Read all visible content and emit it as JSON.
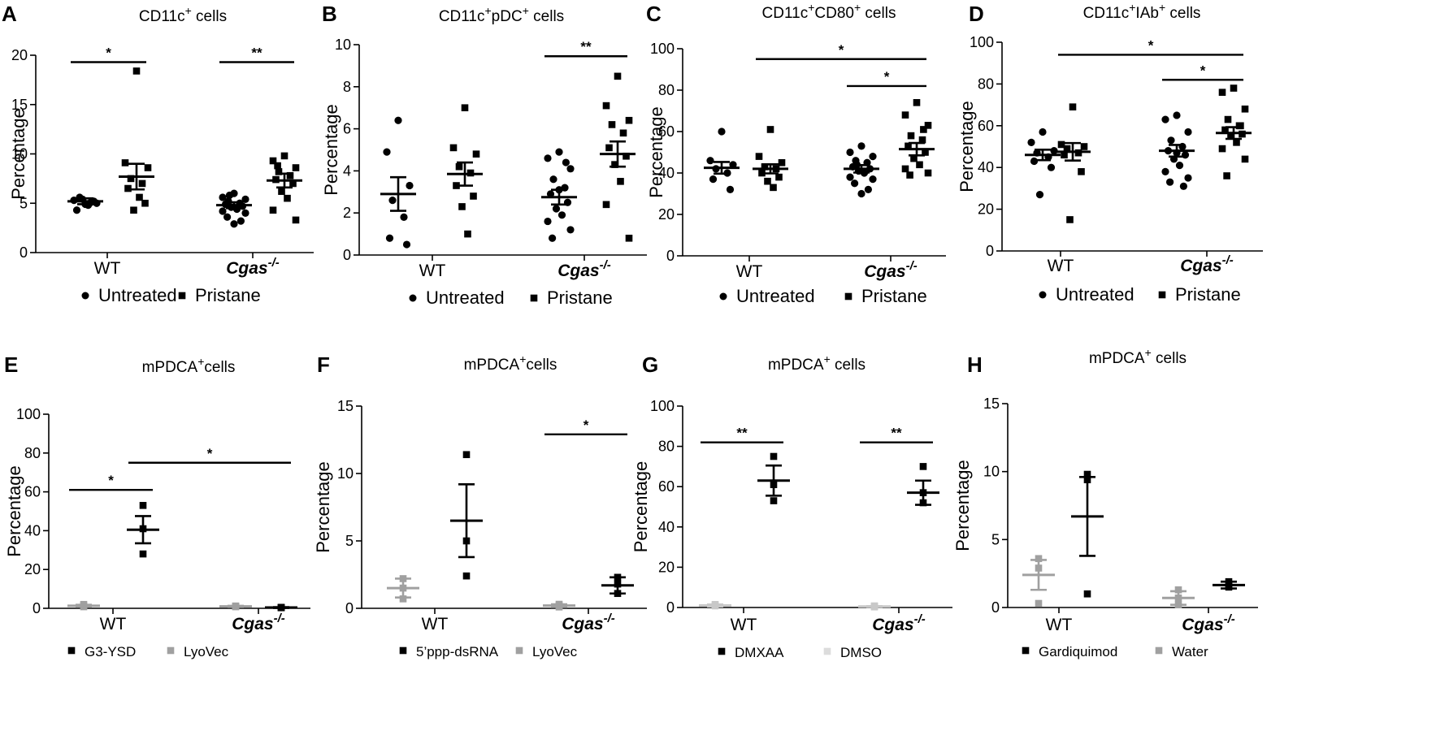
{
  "chart_data": [
    {
      "panel": "A",
      "type": "scatter",
      "title": "CD11c",
      "title_sup": "+",
      "title_rest": " cells",
      "ylabel": "Percentage",
      "ylim": [
        0,
        20
      ],
      "yticks": [
        0,
        5,
        10,
        15,
        20
      ],
      "groups": [
        {
          "text": "WT",
          "italic": false
        },
        {
          "text": "Cgas",
          "sup": "-/-",
          "italic": true
        }
      ],
      "legend": [
        {
          "marker": "circle",
          "label": "Untreated",
          "color": "#000000"
        },
        {
          "marker": "square",
          "label": "Pristane",
          "color": "#000000"
        }
      ],
      "series": [
        {
          "group": 0,
          "slot": 0,
          "marker": "circle",
          "color": "#000000",
          "mean": 5.2,
          "sem": 0.3,
          "values": [
            4.9,
            5.3,
            5.0,
            5.6,
            5.1,
            4.3,
            5.2,
            5.4,
            4.8
          ]
        },
        {
          "group": 0,
          "slot": 1,
          "marker": "square",
          "color": "#000000",
          "mean": 7.7,
          "sem": 1.3,
          "values": [
            18.4,
            9.1,
            8.6,
            7.5,
            7.0,
            6.5,
            5.0,
            4.3,
            5.6
          ]
        },
        {
          "group": 1,
          "slot": 0,
          "marker": "circle",
          "color": "#000000",
          "mean": 4.8,
          "sem": 0.3,
          "values": [
            6.0,
            5.6,
            5.4,
            5.2,
            5.0,
            4.9,
            4.7,
            4.6,
            4.4,
            4.2,
            4.0,
            3.6,
            3.2,
            2.9,
            5.8
          ]
        },
        {
          "group": 1,
          "slot": 1,
          "marker": "square",
          "color": "#000000",
          "mean": 7.3,
          "sem": 0.7,
          "values": [
            9.8,
            9.3,
            8.6,
            8.2,
            7.8,
            7.4,
            7.0,
            6.2,
            5.5,
            4.3,
            3.3,
            8.8
          ]
        }
      ],
      "annotations": [
        {
          "from": [
            0,
            0
          ],
          "to": [
            0,
            1
          ],
          "y": 19.3,
          "text": "*"
        },
        {
          "from": [
            1,
            0
          ],
          "to": [
            1,
            1
          ],
          "y": 19.3,
          "text": "**"
        }
      ]
    },
    {
      "panel": "B",
      "type": "scatter",
      "title": "CD11c",
      "title_sup": "+",
      "title_rest": "pDC",
      "title_sup2": "+",
      "title_rest2": " cells",
      "ylabel": "Percentage",
      "ylim": [
        0,
        10
      ],
      "yticks": [
        0,
        2,
        4,
        6,
        8,
        10
      ],
      "groups": [
        {
          "text": "WT",
          "italic": false
        },
        {
          "text": "Cgas",
          "sup": "-/-",
          "italic": true
        }
      ],
      "legend": [
        {
          "marker": "circle",
          "label": "Untreated",
          "color": "#000000"
        },
        {
          "marker": "square",
          "label": "Pristane",
          "color": "#000000"
        }
      ],
      "series": [
        {
          "group": 0,
          "slot": 0,
          "marker": "circle",
          "color": "#000000",
          "mean": 2.9,
          "sem": 0.8,
          "values": [
            6.4,
            4.9,
            3.3,
            2.6,
            1.8,
            0.8,
            0.5
          ]
        },
        {
          "group": 0,
          "slot": 1,
          "marker": "square",
          "color": "#000000",
          "mean": 3.85,
          "sem": 0.55,
          "values": [
            7.0,
            5.1,
            4.8,
            4.2,
            3.9,
            3.3,
            2.8,
            2.3,
            1.0
          ]
        },
        {
          "group": 1,
          "slot": 0,
          "marker": "circle",
          "color": "#000000",
          "mean": 2.75,
          "sem": 0.35,
          "values": [
            4.9,
            4.6,
            4.1,
            3.6,
            3.2,
            2.9,
            2.5,
            2.2,
            1.9,
            1.6,
            1.2,
            0.8,
            4.4,
            3.1
          ]
        },
        {
          "group": 1,
          "slot": 1,
          "marker": "square",
          "color": "#000000",
          "mean": 4.8,
          "sem": 0.6,
          "values": [
            8.5,
            7.1,
            6.4,
            6.2,
            5.8,
            5.1,
            4.7,
            4.3,
            3.5,
            2.4,
            0.8
          ]
        }
      ],
      "annotations": [
        {
          "from": [
            1,
            0
          ],
          "to": [
            1,
            1
          ],
          "y": 9.45,
          "text": "**"
        }
      ]
    },
    {
      "panel": "C",
      "type": "scatter",
      "title": "CD11c",
      "title_sup": "+",
      "title_rest": "CD80",
      "title_sup2": "+",
      "title_rest2": " cells",
      "ylabel": "Percentage",
      "ylim": [
        0,
        100
      ],
      "yticks": [
        0,
        20,
        40,
        60,
        80,
        100
      ],
      "groups": [
        {
          "text": "WT",
          "italic": false
        },
        {
          "text": "Cgas",
          "sup": "-/-",
          "italic": true
        }
      ],
      "legend": [
        {
          "marker": "circle",
          "label": "Untreated",
          "color": "#000000"
        },
        {
          "marker": "square",
          "label": "Pristane",
          "color": "#000000"
        }
      ],
      "series": [
        {
          "group": 0,
          "slot": 0,
          "marker": "circle",
          "color": "#000000",
          "mean": 42.5,
          "sem": 2.8,
          "values": [
            60,
            46,
            44,
            42,
            40,
            37,
            32
          ]
        },
        {
          "group": 0,
          "slot": 1,
          "marker": "square",
          "color": "#000000",
          "mean": 42.0,
          "sem": 2.2,
          "values": [
            61,
            48,
            45,
            43,
            42,
            40,
            38,
            36,
            33
          ]
        },
        {
          "group": 1,
          "slot": 0,
          "marker": "circle",
          "color": "#000000",
          "mean": 42.0,
          "sem": 1.8,
          "values": [
            53,
            50,
            48,
            46,
            45,
            43,
            42,
            41,
            40,
            38,
            37,
            35,
            32,
            30,
            44
          ]
        },
        {
          "group": 1,
          "slot": 1,
          "marker": "square",
          "color": "#000000",
          "mean": 51.5,
          "sem": 3.0,
          "values": [
            74,
            68,
            63,
            58,
            56,
            53,
            50,
            47,
            44,
            42,
            40,
            39,
            61
          ]
        }
      ],
      "annotations": [
        {
          "from": [
            0,
            1
          ],
          "to": [
            1,
            1
          ],
          "y": 95,
          "text": "*"
        },
        {
          "from": [
            1,
            0
          ],
          "to": [
            1,
            1
          ],
          "y": 82,
          "text": "*"
        }
      ]
    },
    {
      "panel": "D",
      "type": "scatter",
      "title": "CD11c",
      "title_sup": "+",
      "title_rest": "IAb",
      "title_sup2": "+",
      "title_rest2": " cells",
      "ylabel": "Percentage",
      "ylim": [
        0,
        100
      ],
      "yticks": [
        0,
        20,
        40,
        60,
        80,
        100
      ],
      "groups": [
        {
          "text": "WT",
          "italic": false
        },
        {
          "text": "Cgas",
          "sup": "-/-",
          "italic": true
        }
      ],
      "legend": [
        {
          "marker": "circle",
          "label": "Untreated",
          "color": "#000000"
        },
        {
          "marker": "square",
          "label": "Pristane",
          "color": "#000000"
        }
      ],
      "series": [
        {
          "group": 0,
          "slot": 0,
          "marker": "circle",
          "color": "#000000",
          "mean": 46.0,
          "sem": 2.5,
          "values": [
            57,
            52,
            48,
            47,
            45,
            43,
            40,
            27
          ]
        },
        {
          "group": 0,
          "slot": 1,
          "marker": "square",
          "color": "#000000",
          "mean": 47.5,
          "sem": 4.2,
          "values": [
            69,
            51,
            50,
            49,
            47,
            46,
            38,
            15
          ]
        },
        {
          "group": 1,
          "slot": 0,
          "marker": "circle",
          "color": "#000000",
          "mean": 48.0,
          "sem": 2.8,
          "values": [
            65,
            63,
            57,
            53,
            50,
            48,
            46,
            44,
            41,
            38,
            35,
            33,
            31,
            47
          ]
        },
        {
          "group": 1,
          "slot": 1,
          "marker": "square",
          "color": "#000000",
          "mean": 56.5,
          "sem": 2.8,
          "values": [
            78,
            76,
            68,
            63,
            60,
            58,
            56,
            55,
            52,
            49,
            44,
            36,
            60
          ]
        }
      ],
      "annotations": [
        {
          "from": [
            0,
            1
          ],
          "to": [
            1,
            1
          ],
          "y": 94,
          "text": "*"
        },
        {
          "from": [
            1,
            0
          ],
          "to": [
            1,
            1
          ],
          "y": 82,
          "text": "*"
        }
      ]
    },
    {
      "panel": "E",
      "type": "scatter",
      "title": "mPDCA",
      "title_sup": "+",
      "title_rest": "cells",
      "ylabel": "Percentage",
      "ylim": [
        0,
        100
      ],
      "yticks": [
        0,
        20,
        40,
        60,
        80,
        100
      ],
      "groups": [
        {
          "text": "WT",
          "italic": false
        },
        {
          "text": "Cgas",
          "sup": "-/-",
          "italic": true
        }
      ],
      "legend": [
        {
          "marker": "square",
          "label": "G3-YSD",
          "color": "#000000"
        },
        {
          "marker": "square",
          "label": "LyoVec",
          "color": "#a0a0a0"
        }
      ],
      "series": [
        {
          "group": 0,
          "slot": 0,
          "marker": "square",
          "color": "#a0a0a0",
          "mean": 1.3,
          "sem": 0.5,
          "values": [
            1.5,
            0.8,
            2.0
          ]
        },
        {
          "group": 0,
          "slot": 1,
          "marker": "square",
          "color": "#000000",
          "mean": 40.5,
          "sem": 7.0,
          "values": [
            53,
            41,
            28
          ]
        },
        {
          "group": 1,
          "slot": 0,
          "marker": "square",
          "color": "#a0a0a0",
          "mean": 1.0,
          "sem": 0.3,
          "values": [
            1.2,
            0.8,
            1.0
          ]
        },
        {
          "group": 1,
          "slot": 1,
          "marker": "square",
          "color": "#000000",
          "mean": 0.4,
          "sem": 0.2,
          "values": [
            0.5,
            0.3,
            0.4
          ]
        }
      ],
      "annotations": [
        {
          "from": [
            0,
            0
          ],
          "to": [
            0,
            1
          ],
          "y": 61,
          "text": "*"
        },
        {
          "from": [
            0,
            1
          ],
          "to": [
            1,
            1
          ],
          "y": 75,
          "text": "*"
        }
      ]
    },
    {
      "panel": "F",
      "type": "scatter",
      "title": "mPDCA",
      "title_sup": "+",
      "title_rest": "cells",
      "ylabel": "Percentage",
      "ylim": [
        0,
        15
      ],
      "yticks": [
        0,
        5,
        10,
        15
      ],
      "groups": [
        {
          "text": "WT",
          "italic": false
        },
        {
          "text": "Cgas",
          "sup": "-/-",
          "italic": true
        }
      ],
      "legend": [
        {
          "marker": "square",
          "label": "5’ppp-dsRNA",
          "color": "#000000"
        },
        {
          "marker": "square",
          "label": "LyoVec",
          "color": "#a0a0a0"
        }
      ],
      "series": [
        {
          "group": 0,
          "slot": 0,
          "marker": "square",
          "color": "#a0a0a0",
          "mean": 1.5,
          "sem": 0.7,
          "values": [
            2.2,
            1.5,
            0.7
          ]
        },
        {
          "group": 0,
          "slot": 1,
          "marker": "square",
          "color": "#000000",
          "mean": 6.5,
          "sem": 2.7,
          "values": [
            11.4,
            5.0,
            2.4
          ]
        },
        {
          "group": 1,
          "slot": 0,
          "marker": "square",
          "color": "#a0a0a0",
          "mean": 0.2,
          "sem": 0.1,
          "values": [
            0.3,
            0.2,
            0.1
          ]
        },
        {
          "group": 1,
          "slot": 1,
          "marker": "square",
          "color": "#000000",
          "mean": 1.7,
          "sem": 0.6,
          "values": [
            2.3,
            1.8,
            1.1
          ]
        }
      ],
      "annotations": [
        {
          "from": [
            1,
            0
          ],
          "to": [
            1,
            1
          ],
          "y": 12.9,
          "text": "*"
        }
      ]
    },
    {
      "panel": "G",
      "type": "scatter",
      "title": "mPDCA",
      "title_sup": "+",
      "title_rest": " cells",
      "ylabel": "Percentage",
      "ylim": [
        0,
        100
      ],
      "yticks": [
        0,
        20,
        40,
        60,
        80,
        100
      ],
      "groups": [
        {
          "text": "WT",
          "italic": false
        },
        {
          "text": "Cgas",
          "sup": "-/-",
          "italic": true
        }
      ],
      "legend": [
        {
          "marker": "square",
          "label": "DMXAA",
          "color": "#000000"
        },
        {
          "marker": "square",
          "label": "DMSO",
          "color": "#dcdcdc"
        }
      ],
      "series": [
        {
          "group": 0,
          "slot": 0,
          "marker": "square",
          "color": "#c8c8c8",
          "mean": 1.0,
          "sem": 0.5,
          "values": [
            1.5,
            0.8,
            1.0
          ]
        },
        {
          "group": 0,
          "slot": 1,
          "marker": "square",
          "color": "#000000",
          "mean": 63,
          "sem": 7.5,
          "values": [
            75,
            61,
            53
          ]
        },
        {
          "group": 1,
          "slot": 0,
          "marker": "square",
          "color": "#c8c8c8",
          "mean": 0.5,
          "sem": 0.2,
          "values": [
            0.8,
            0.3,
            0.5
          ]
        },
        {
          "group": 1,
          "slot": 1,
          "marker": "square",
          "color": "#000000",
          "mean": 57,
          "sem": 6.0,
          "values": [
            70,
            57,
            52
          ]
        }
      ],
      "annotations": [
        {
          "from": [
            0,
            0
          ],
          "to": [
            0,
            1
          ],
          "y": 82,
          "text": "**"
        },
        {
          "from": [
            1,
            0
          ],
          "to": [
            1,
            1
          ],
          "y": 82,
          "text": "**"
        }
      ]
    },
    {
      "panel": "H",
      "type": "scatter",
      "title": "mPDCA",
      "title_sup": "+",
      "title_rest": " cells",
      "ylabel": "Percentage",
      "ylim": [
        0,
        15
      ],
      "yticks": [
        0,
        5,
        10,
        15
      ],
      "groups": [
        {
          "text": "WT",
          "italic": false
        },
        {
          "text": "Cgas",
          "sup": "-/-",
          "italic": true
        }
      ],
      "legend": [
        {
          "marker": "square",
          "label": "Gardiquimod",
          "color": "#000000"
        },
        {
          "marker": "square",
          "label": "Water",
          "color": "#a0a0a0"
        }
      ],
      "series": [
        {
          "group": 0,
          "slot": 0,
          "marker": "square",
          "color": "#a0a0a0",
          "mean": 2.4,
          "sem": 1.1,
          "values": [
            3.6,
            2.9,
            0.3
          ]
        },
        {
          "group": 0,
          "slot": 1,
          "marker": "square",
          "color": "#000000",
          "mean": 6.7,
          "sem": 2.9,
          "values": [
            9.8,
            9.4,
            1.0
          ]
        },
        {
          "group": 1,
          "slot": 0,
          "marker": "square",
          "color": "#a0a0a0",
          "mean": 0.7,
          "sem": 0.5,
          "values": [
            1.3,
            0.7,
            0.2
          ]
        },
        {
          "group": 1,
          "slot": 1,
          "marker": "square",
          "color": "#000000",
          "mean": 1.65,
          "sem": 0.25,
          "values": [
            1.9,
            1.6,
            1.5
          ]
        }
      ],
      "annotations": []
    }
  ]
}
